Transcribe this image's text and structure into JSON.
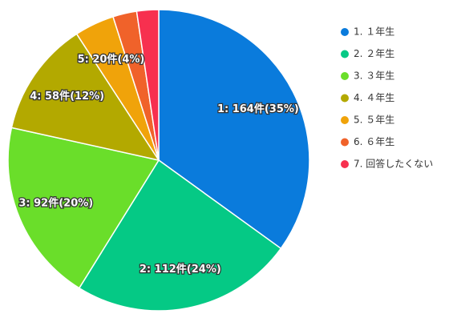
{
  "chart_data": {
    "type": "pie",
    "categories": [
      "1. １年生",
      "2. ２年生",
      "3. ３年生",
      "4. ４年生",
      "5. ５年生",
      "6. ６年生",
      "7. 回答したくない"
    ],
    "values": [
      164,
      112,
      92,
      58,
      20,
      12,
      11
    ],
    "value_labels": [
      "1: 164件(35%)",
      "2: 112件(24%)",
      "3: 92件(20%)",
      "4: 58件(12%)",
      "5: 20件(4%)",
      null,
      null
    ],
    "colors": [
      "#0a7bdc",
      "#05c985",
      "#6ade2a",
      "#b3a900",
      "#f0a30a",
      "#f0622a",
      "#f7304f"
    ]
  }
}
